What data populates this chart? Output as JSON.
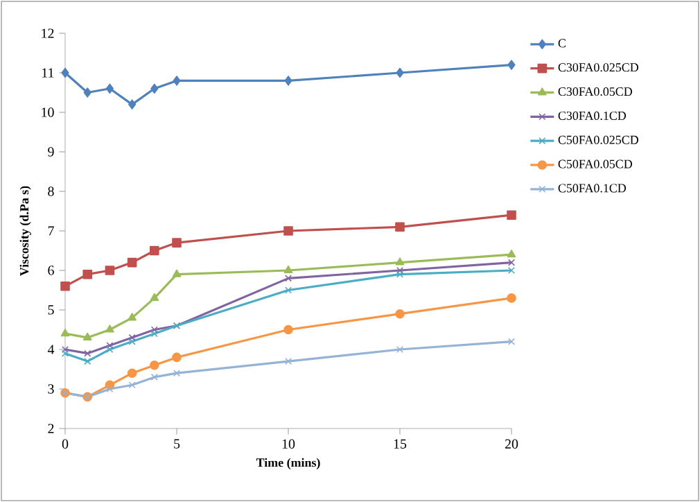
{
  "chart_data": {
    "type": "line",
    "xlabel": "Time (mins)",
    "ylabel": "Viscosity (d.Pa s)",
    "x": [
      0,
      1,
      2,
      3,
      4,
      5,
      10,
      15,
      20
    ],
    "xlim": [
      0,
      20
    ],
    "xticks": [
      0,
      5,
      10,
      15,
      20
    ],
    "ylim": [
      2,
      12
    ],
    "yticks": [
      2,
      3,
      4,
      5,
      6,
      7,
      8,
      9,
      10,
      11,
      12
    ],
    "grid": false,
    "legend": "right",
    "series": [
      {
        "name": "C",
        "color": "#4f81bd",
        "marker": "diamond",
        "values": [
          11,
          10.5,
          10.6,
          10.2,
          10.6,
          10.8,
          10.8,
          11,
          11.2
        ]
      },
      {
        "name": "C30FA0.025CD",
        "color": "#c0504d",
        "marker": "square",
        "values": [
          5.6,
          5.9,
          6.0,
          6.2,
          6.5,
          6.7,
          7.0,
          7.1,
          7.4
        ]
      },
      {
        "name": "C30FA0.05CD",
        "color": "#9bbb59",
        "marker": "triangle",
        "values": [
          4.4,
          4.3,
          4.5,
          4.8,
          5.3,
          5.9,
          6.0,
          6.2,
          6.4
        ]
      },
      {
        "name": "C30FA0.1CD",
        "color": "#8064a2",
        "marker": "cross",
        "values": [
          4.0,
          3.9,
          4.1,
          4.3,
          4.5,
          4.6,
          5.8,
          6.0,
          6.2
        ]
      },
      {
        "name": "C50FA0.025CD",
        "color": "#4bacc6",
        "marker": "cross",
        "values": [
          3.9,
          3.7,
          4.0,
          4.2,
          4.4,
          4.6,
          5.5,
          5.9,
          6.0
        ]
      },
      {
        "name": "C50FA0.05CD",
        "color": "#f79646",
        "marker": "circle",
        "values": [
          2.9,
          2.8,
          3.1,
          3.4,
          3.6,
          3.8,
          4.5,
          4.9,
          5.3
        ]
      },
      {
        "name": "C50FA0.1CD",
        "color": "#95b3d7",
        "marker": "cross",
        "values": [
          2.9,
          2.8,
          3.0,
          3.1,
          3.3,
          3.4,
          3.7,
          4.0,
          4.2
        ]
      }
    ]
  }
}
